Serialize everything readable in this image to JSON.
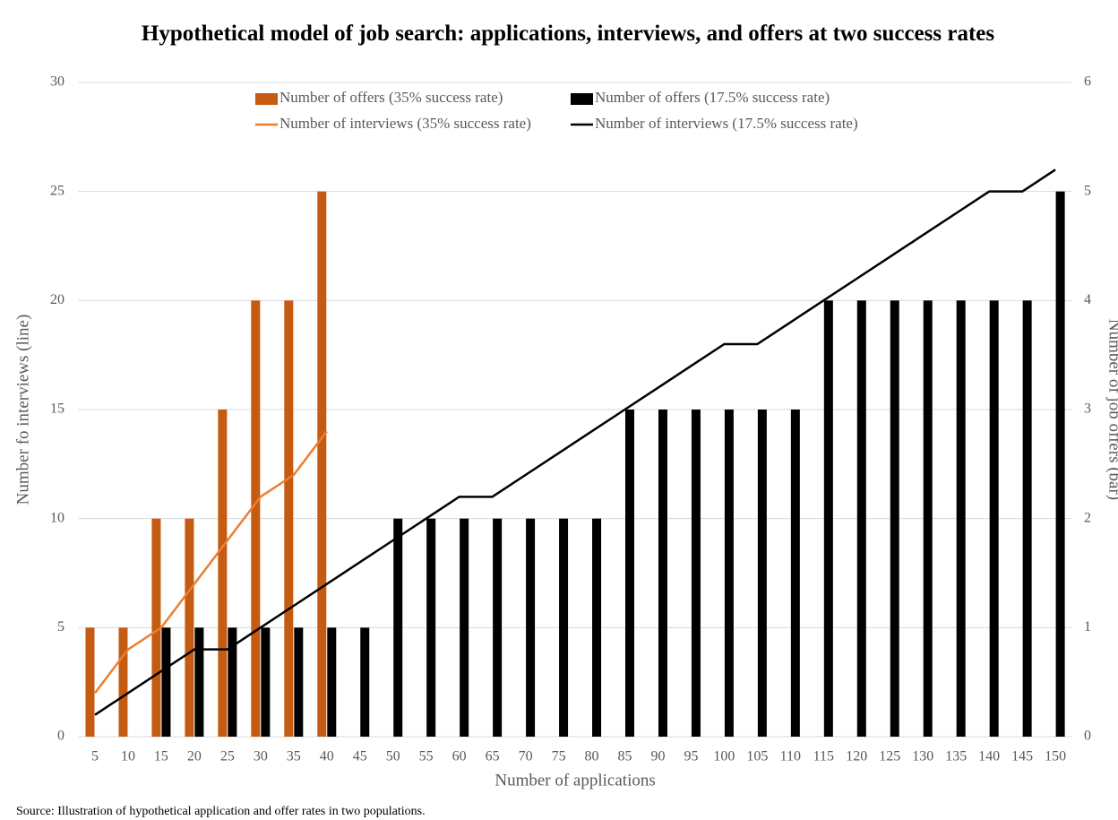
{
  "chart_data": {
    "type": "bar",
    "title": "Hypothetical model of  job search: applications, interviews, and offers at two success rates",
    "x_label": "Number of applications",
    "y_label": "Number fo interviews (line)",
    "y2_label": "Number of job offers (bar)",
    "source": "Source: Illustration of hypothetical application and offer rates in two populations.",
    "categories": [
      "5",
      "10",
      "15",
      "20",
      "25",
      "30",
      "35",
      "40",
      "45",
      "50",
      "55",
      "60",
      "65",
      "70",
      "75",
      "80",
      "85",
      "90",
      "95",
      "100",
      "105",
      "110",
      "115",
      "120",
      "125",
      "130",
      "135",
      "140",
      "145",
      "150"
    ],
    "series": [
      {
        "name": "Number of offers (35% success rate)",
        "type": "bar",
        "axis": "y2",
        "color": "#c55a11",
        "values": [
          1,
          1,
          2,
          2,
          3,
          4,
          4,
          5,
          null,
          null,
          null,
          null,
          null,
          null,
          null,
          null,
          null,
          null,
          null,
          null,
          null,
          null,
          null,
          null,
          null,
          null,
          null,
          null,
          null,
          null
        ]
      },
      {
        "name": "Number of offers (17.5% success rate)",
        "type": "bar",
        "axis": "y2",
        "color": "#000000",
        "values": [
          null,
          null,
          1,
          1,
          1,
          1,
          1,
          1,
          1,
          2,
          2,
          2,
          2,
          2,
          2,
          2,
          3,
          3,
          3,
          3,
          3,
          3,
          4,
          4,
          4,
          4,
          4,
          4,
          4,
          5
        ]
      },
      {
        "name": "Number of interviews (35% success rate)",
        "type": "line",
        "color": "#ed7d31",
        "values": [
          2,
          4,
          5,
          7,
          9,
          11,
          12,
          14,
          null,
          null,
          null,
          null,
          null,
          null,
          null,
          null,
          null,
          null,
          null,
          null,
          null,
          null,
          null,
          null,
          null,
          null,
          null,
          null,
          null,
          null
        ]
      },
      {
        "name": "Number of interviews (17.5% success rate)",
        "type": "line",
        "color": "#000000",
        "values": [
          1,
          2,
          3,
          4,
          4,
          5,
          6,
          7,
          8,
          9,
          10,
          11,
          11,
          12,
          13,
          14,
          15,
          16,
          17,
          18,
          18,
          19,
          20,
          21,
          22,
          23,
          24,
          25,
          25,
          26
        ]
      }
    ],
    "ylim": [
      0,
      30
    ],
    "yticks": [
      0,
      5,
      10,
      15,
      20,
      25,
      30
    ],
    "y2lim": [
      0,
      6
    ],
    "y2ticks": [
      0,
      1,
      2,
      3,
      4,
      5,
      6
    ],
    "grid": true,
    "legend": "top"
  }
}
